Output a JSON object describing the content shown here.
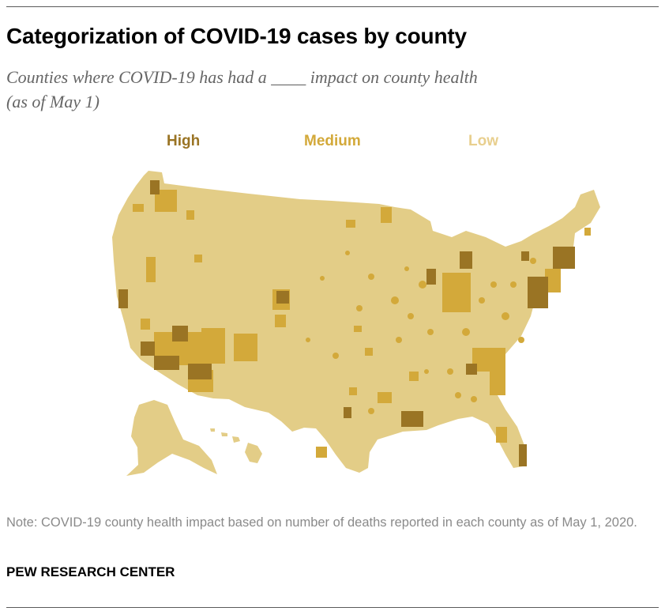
{
  "header": {
    "title": "Categorization of COVID-19 cases by county",
    "subtitle_line1": "Counties where COVID-19 has had a ____ impact on county health",
    "subtitle_line2": "(as of May 1)"
  },
  "legend": [
    {
      "key": "high",
      "label": "High",
      "color": "#9a7424"
    },
    {
      "key": "medium",
      "label": "Medium",
      "color": "#d3a93a"
    },
    {
      "key": "low",
      "label": "Low",
      "color": "#e8cf8e"
    }
  ],
  "map": {
    "regions": [
      "contiguous-us",
      "alaska",
      "hawaii"
    ],
    "base_color": "#e3cd87",
    "high_impact_areas": [
      "Seattle (WA)",
      "Los Angeles (CA)",
      "Phoenix (AZ)",
      "Navajo region (AZ/NM)",
      "Salt Lake City (UT)",
      "Chicago (IL)",
      "Detroit (MI)",
      "New York (NY)",
      "Boston (MA)",
      "Philadelphia (PA)",
      "New Orleans (LA)",
      "Miami (FL)",
      "Atlanta (GA)"
    ]
  },
  "footer": {
    "note": "Note: COVID-19 county health impact based on number of deaths reported in each county as of May 1, 2020.",
    "source": "PEW RESEARCH CENTER"
  }
}
